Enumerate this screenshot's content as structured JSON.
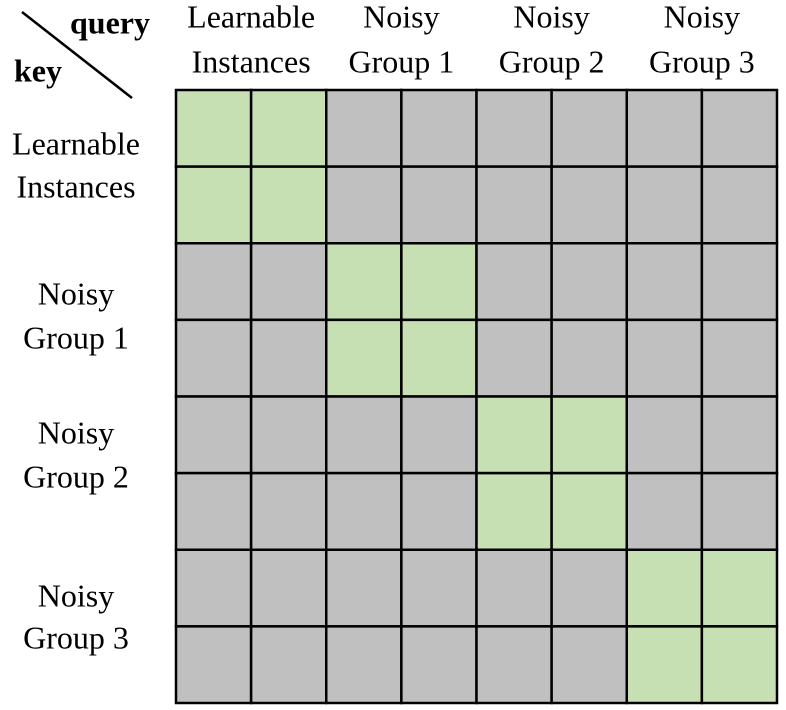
{
  "corner": {
    "query": "query",
    "key": "key"
  },
  "groups": [
    {
      "lines": [
        "Learnable",
        "Instances"
      ]
    },
    {
      "lines": [
        "Noisy",
        "Group 1"
      ]
    },
    {
      "lines": [
        "Noisy",
        "Group 2"
      ]
    },
    {
      "lines": [
        "Noisy",
        "Group 3"
      ]
    }
  ]
}
